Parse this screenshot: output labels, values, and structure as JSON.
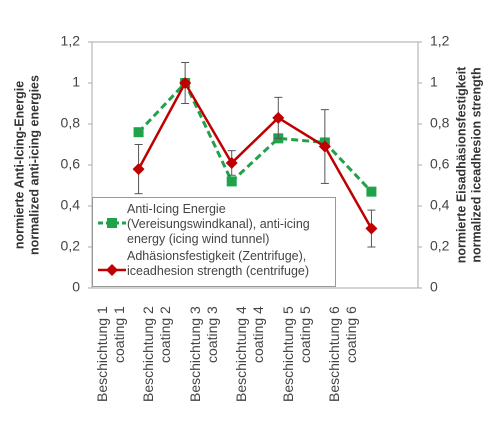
{
  "chart_data": {
    "type": "line",
    "ylabel": [
      "normierte Anti-Icing-Energie",
      "normalized anti-icing energies"
    ],
    "y2label": [
      "normierte Eisadhäsionsfestigkeit",
      "normalized iceadhesion strength"
    ],
    "categories": [
      "Beschichtung 1\ncoating 1",
      "Beschichtung 2\ncoating 2",
      "Beschichtung 3\ncoating 3",
      "Beschichtung 4\ncoating 4",
      "Beschichtung 5\ncoating 5",
      "Beschichtung 6\ncoating 6"
    ],
    "series": [
      {
        "name": "Anti-Icing Energie (Vereisungswindkanal), anti-icing energy (icing wind tunnel)",
        "color": "#1fa24a",
        "marker": "square",
        "dashed": true,
        "values": [
          0.76,
          1.0,
          0.52,
          0.73,
          0.71,
          0.47
        ]
      },
      {
        "name": "Adhäsionsfestigkeit (Zentrifuge), iceadhesion strength (centrifuge)",
        "color": "#c00000",
        "marker": "diamond",
        "axis": "y2",
        "values": [
          0.58,
          1.0,
          0.61,
          0.83,
          0.69,
          0.29
        ],
        "errors": [
          0.12,
          0.1,
          0.06,
          0.1,
          0.18,
          0.09
        ]
      }
    ],
    "ylim": [
      0,
      1.2
    ],
    "yticks": [
      0,
      {
        "value": 0.2,
        "label": "0,2"
      },
      {
        "value": 0.4,
        "label": "0,4"
      },
      {
        "value": 0.6,
        "label": "0,6"
      },
      {
        "value": 0.8,
        "label": "0,8"
      },
      1,
      {
        "value": 1.2,
        "label": "1,2"
      }
    ],
    "y2lim": [
      0,
      1.2
    ],
    "y2ticks": [
      0,
      {
        "value": 0.2,
        "label": "0,2"
      },
      {
        "value": 0.4,
        "label": "0,4"
      },
      {
        "value": 0.6,
        "label": "0,6"
      },
      {
        "value": 0.8,
        "label": "0,8"
      },
      1,
      {
        "value": 1.2,
        "label": "1,2"
      }
    ],
    "grid": false
  }
}
